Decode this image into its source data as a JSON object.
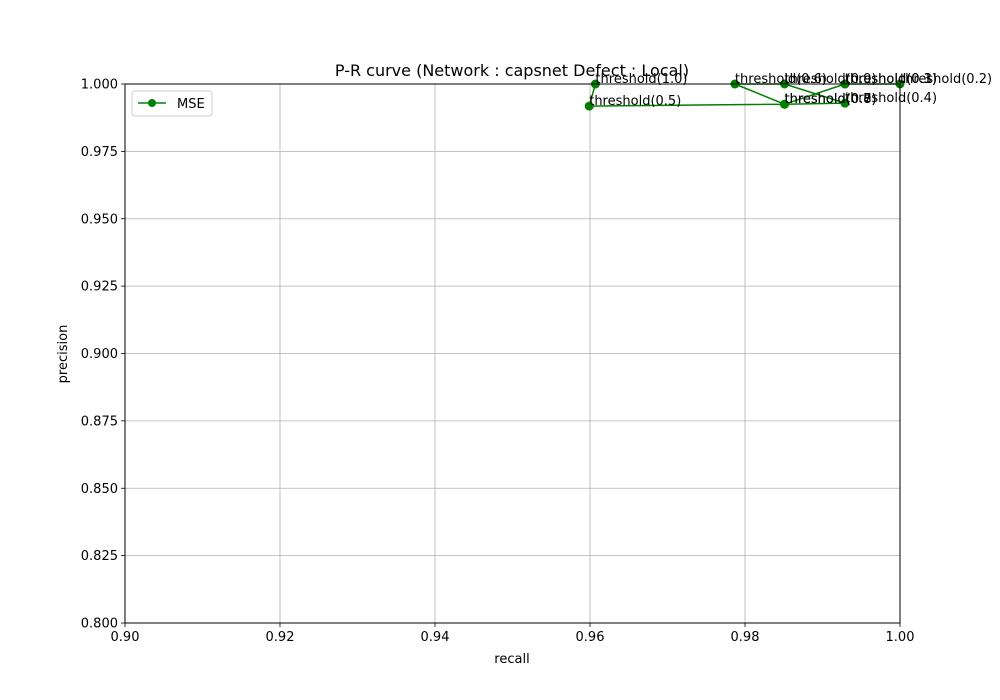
{
  "chart_data": {
    "type": "line",
    "title": "P-R curve (Network : capsnet Defect : Local)",
    "xlabel": "recall",
    "ylabel": "precision",
    "xlim": [
      0.9,
      1.0
    ],
    "ylim": [
      0.8,
      1.0
    ],
    "xticks": [
      "0.90",
      "0.92",
      "0.94",
      "0.96",
      "0.98",
      "1.00"
    ],
    "yticks": [
      "0.800",
      "0.825",
      "0.850",
      "0.875",
      "0.900",
      "0.925",
      "0.950",
      "0.975",
      "1.000"
    ],
    "grid": true,
    "legend_position": "top-left",
    "series": [
      {
        "name": "MSE",
        "color": "#008000",
        "marker": "circle",
        "points": [
          {
            "x": 0.9607,
            "y": 1.0,
            "label": "threshold(1.0)"
          },
          {
            "x": 0.9599,
            "y": 0.9918,
            "label": "threshold(0.5)"
          },
          {
            "x": 0.9851,
            "y": 0.9925,
            "label": "threshold(0.7)"
          },
          {
            "x": 0.9787,
            "y": 1.0,
            "label": "threshold(0.6)"
          },
          {
            "x": 0.9851,
            "y": 1.0,
            "label": "threshold(0.9)"
          },
          {
            "x": 0.9929,
            "y": 0.9929,
            "label": "threshold(0.4)"
          },
          {
            "x": 0.9851,
            "y": 0.9925,
            "label": "threshold(0.8)"
          },
          {
            "x": 0.9929,
            "y": 1.0,
            "label": "threshold(0.3)"
          },
          {
            "x": 1.0,
            "y": 1.0,
            "label": "threshold(0.2)"
          },
          {
            "x": 0.9929,
            "y": 1.0,
            "label": "threshold(0.1)"
          }
        ]
      }
    ]
  }
}
